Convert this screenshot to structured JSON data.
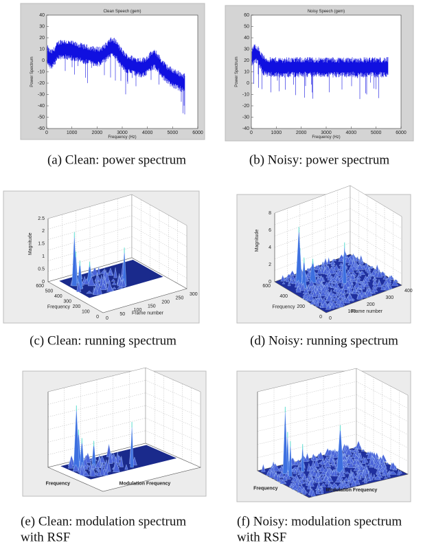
{
  "panels": [
    {
      "caption": [
        "(a) Clean: power spectrum"
      ],
      "title": "Clean Speech (gem)",
      "xlabel": "Frequency (Hz)",
      "ylabel": "Power Spectrum",
      "xticks": [
        "0",
        "1000",
        "2000",
        "3000",
        "4000",
        "5000",
        "6000"
      ],
      "yticks": [
        "40",
        "30",
        "20",
        "10",
        "0",
        "-10",
        "-20",
        "-30",
        "-40",
        "-50",
        "-60"
      ]
    },
    {
      "caption": [
        "(b) Noisy: power spectrum"
      ],
      "title": "Noisy Speech (gem)",
      "xlabel": "Frequency (Hz)",
      "ylabel": "Power Spectrum",
      "xticks": [
        "0",
        "1000",
        "2000",
        "3000",
        "4000",
        "5000",
        "6000"
      ],
      "yticks": [
        "60",
        "50",
        "40",
        "30",
        "20",
        "10",
        "0",
        "-10",
        "-20",
        "-30",
        "-40"
      ]
    },
    {
      "caption": [
        "(c) Clean: running spectrum"
      ],
      "zlabel": "Magnitude",
      "ylabel": "Frequency",
      "xlabel": "Frame number",
      "zticks": [
        "0",
        "0.5",
        "1",
        "1.5",
        "2",
        "2.5"
      ],
      "yticks": [
        "600",
        "500",
        "400",
        "300",
        "200",
        "100",
        "0"
      ],
      "xticks": [
        "0",
        "50",
        "100",
        "150",
        "200",
        "250",
        "300"
      ]
    },
    {
      "caption": [
        "(d) Noisy: running spectrum"
      ],
      "zlabel": "Magnitude",
      "ylabel": "Frequency",
      "xlabel": "Frame number",
      "zticks": [
        "0",
        "2",
        "4",
        "6",
        "8"
      ],
      "yticks": [
        "600",
        "400",
        "200",
        "0"
      ],
      "xticks": [
        "0",
        "100",
        "200",
        "300",
        "400"
      ]
    },
    {
      "caption": [
        "(e) Clean: modulation spectrum",
        "with RSF"
      ],
      "ylabel": "Frequency",
      "xlabel": "Modulation Frequency"
    },
    {
      "caption": [
        "(f) Noisy: modulation spectrum",
        "with RSF"
      ],
      "ylabel": "Frequency",
      "xlabel": "Modulation Frequency"
    }
  ]
}
